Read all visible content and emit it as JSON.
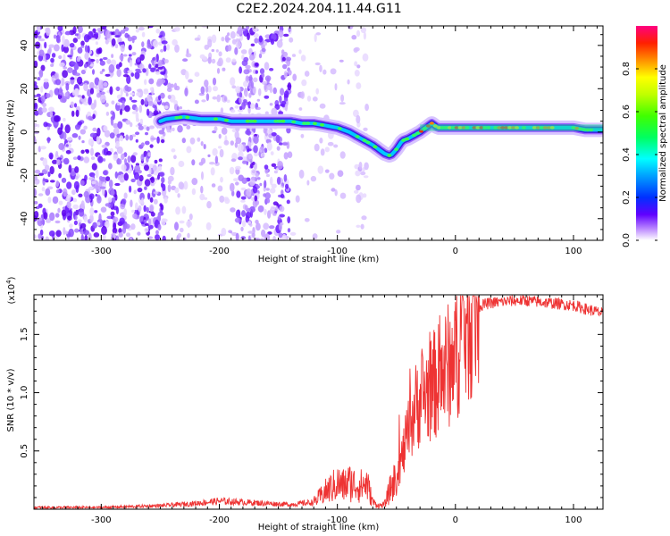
{
  "title": "C2E2.2024.204.11.44.G11",
  "top_panel": {
    "xlabel": "Height of straight line (km)",
    "ylabel": "Frequency (Hz)",
    "xticks": [
      -300,
      -200,
      -100,
      0,
      100
    ],
    "yticks": [
      -40,
      -20,
      0,
      20,
      40
    ],
    "colorbar": {
      "label": "Normalized spectral amplitude",
      "ticks": [
        "0.0",
        "0.2",
        "0.4",
        "0.6",
        "0.8"
      ]
    }
  },
  "bottom_panel": {
    "xlabel": "Height of straight line (km)",
    "ylabel": "SNR (10 * v/v)",
    "multiplier": "(x10",
    "multiplier_exp": "4",
    "multiplier_close": ")",
    "xticks": [
      -300,
      -200,
      -100,
      0,
      100
    ],
    "yticks": [
      "0.5",
      "1.0",
      "1.5"
    ]
  },
  "chart_data": [
    {
      "type": "heatmap",
      "title": "C2E2.2024.204.11.44.G11",
      "xlabel": "Height of straight line (km)",
      "ylabel": "Frequency (Hz)",
      "xlim": [
        -357,
        125
      ],
      "ylim": [
        -50,
        49
      ],
      "colorbar_range": [
        0,
        1
      ],
      "colorbar_label": "Normalized spectral amplitude",
      "ridge": {
        "x": [
          -250,
          -245,
          -230,
          -215,
          -200,
          -190,
          -180,
          -160,
          -150,
          -140,
          -130,
          -120,
          -110,
          -100,
          -90,
          -80,
          -70,
          -60,
          -55,
          -50,
          -45,
          -40,
          -30,
          -25,
          -20,
          -15,
          -10,
          0,
          20,
          50,
          80,
          100,
          110,
          125
        ],
        "y": [
          5,
          6,
          7,
          6,
          6,
          5,
          5,
          5,
          5,
          5,
          4,
          4,
          3,
          2,
          0,
          -3,
          -6,
          -10,
          -11,
          -8,
          -4,
          -3,
          0,
          2,
          4,
          2,
          2,
          2,
          2,
          2,
          2,
          2,
          1,
          1
        ]
      }
    },
    {
      "type": "line",
      "xlabel": "Height of straight line (km)",
      "ylabel": "SNR (10 * v/v)",
      "xlim": [
        -357,
        125
      ],
      "ylim": [
        0,
        18400
      ],
      "color": "#ee3333",
      "series": [
        {
          "x": [
            -357,
            -300,
            -250,
            -220,
            -200,
            -180,
            -160,
            -140,
            -120,
            -110,
            -100,
            -95,
            -90,
            -85,
            -80,
            -75,
            -70,
            -65,
            -60,
            -55,
            -50,
            -45,
            -40,
            -35,
            -30,
            -25,
            -20,
            -15,
            -10,
            -5,
            0,
            5,
            10,
            15,
            20,
            25,
            30,
            40,
            50,
            60,
            70,
            80,
            90,
            100,
            110,
            125
          ],
          "y": [
            150,
            150,
            300,
            500,
            700,
            600,
            500,
            400,
            600,
            1500,
            2200,
            2000,
            2300,
            2100,
            2000,
            2200,
            600,
            300,
            400,
            1800,
            2700,
            4500,
            6500,
            8500,
            9500,
            10000,
            10500,
            11000,
            11700,
            12500,
            13500,
            14800,
            16000,
            17000,
            17400,
            17600,
            17700,
            17800,
            17900,
            17900,
            17800,
            17700,
            17600,
            17500,
            17200,
            16800
          ]
        }
      ]
    }
  ]
}
